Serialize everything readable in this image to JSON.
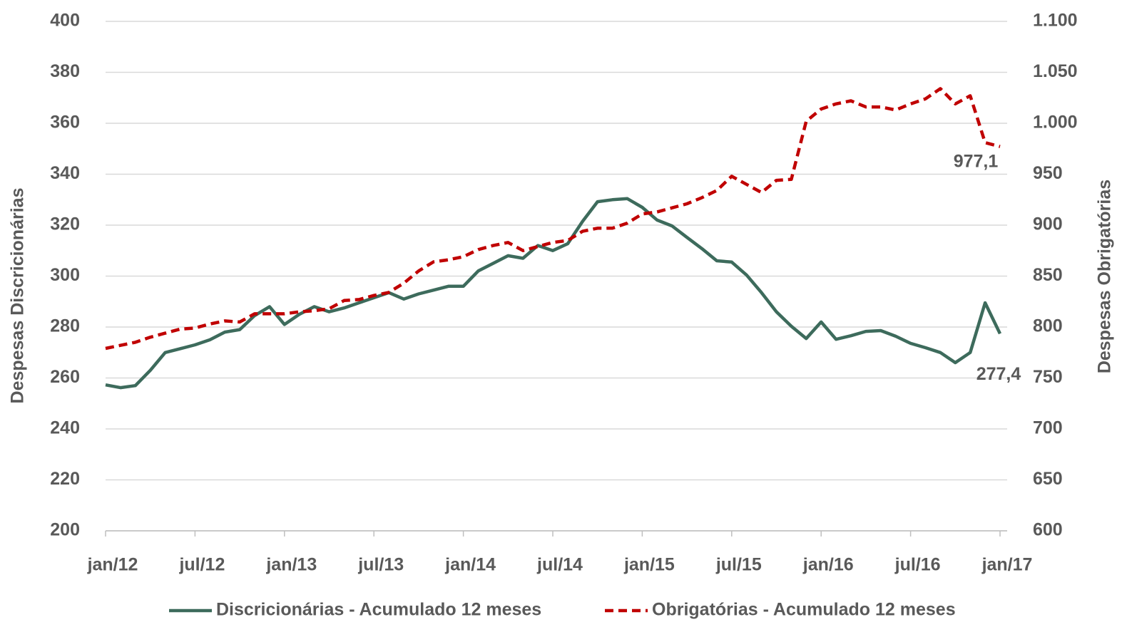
{
  "chart_data": {
    "type": "line",
    "ylabel": "Despesas Discricionárias",
    "y2label": "Despesas Obrigatórias",
    "categories": [
      "jan/12",
      null,
      null,
      null,
      null,
      null,
      "jul/12",
      null,
      null,
      null,
      null,
      null,
      "jan/13",
      null,
      null,
      null,
      null,
      null,
      "jul/13",
      null,
      null,
      null,
      null,
      null,
      "jan/14",
      null,
      null,
      null,
      null,
      null,
      "jul/14",
      null,
      null,
      null,
      null,
      null,
      "jan/15",
      null,
      null,
      null,
      null,
      null,
      "jul/15",
      null,
      null,
      null,
      null,
      null,
      "jan/16",
      null,
      null,
      null,
      null,
      null,
      "jul/16",
      null,
      null,
      null,
      null,
      null,
      "jan/17"
    ],
    "ylim": [
      200,
      400
    ],
    "yticks": [
      200,
      220,
      240,
      260,
      280,
      300,
      320,
      340,
      360,
      380,
      400
    ],
    "y2lim": [
      600,
      1100
    ],
    "y2ticks": [
      600,
      650,
      700,
      750,
      800,
      850,
      900,
      950,
      {
        "value": 1000,
        "label": "1.000"
      },
      {
        "value": 1050,
        "label": "1.050"
      },
      {
        "value": 1100,
        "label": "1.100"
      }
    ],
    "grid": true,
    "legend": "bottom",
    "series": [
      {
        "name": "Discricionárias - Acumulado 12 meses",
        "color": "#3d6b5c",
        "dash": false,
        "values": [
          257.3,
          256.2,
          257,
          263,
          270,
          271.5,
          273,
          275,
          278,
          279,
          284.5,
          288,
          281,
          285,
          288,
          286,
          287.5,
          289.5,
          291.5,
          293.5,
          291,
          293,
          294.5,
          296,
          296,
          302,
          305,
          308,
          307,
          312,
          310,
          312.7,
          321.5,
          329.2,
          330,
          330.4,
          327,
          322,
          319.7,
          315.2,
          310.8,
          306,
          305.5,
          300.4,
          293.5,
          286,
          280.3,
          275.5,
          282,
          275.2,
          276.6,
          278.3,
          278.6,
          276.4,
          273.6,
          271.9,
          270,
          266,
          270,
          289.5,
          277.4
        ],
        "value_labels": [
          null,
          null,
          null,
          null,
          null,
          null,
          null,
          null,
          null,
          null,
          null,
          null,
          null,
          null,
          null,
          null,
          null,
          null,
          null,
          null,
          null,
          null,
          null,
          null,
          null,
          null,
          null,
          null,
          null,
          null,
          null,
          null,
          null,
          null,
          null,
          null,
          null,
          null,
          null,
          null,
          null,
          null,
          null,
          null,
          null,
          null,
          null,
          null,
          null,
          null,
          null,
          null,
          null,
          null,
          null,
          null,
          null,
          null,
          null,
          null,
          "277,4"
        ]
      },
      {
        "name": "Obrigatórias - Acumulado 12 meses",
        "color": "#c00000",
        "dash": true,
        "axis": "y2",
        "values": [
          779,
          782,
          785,
          790,
          794,
          798,
          799,
          803,
          806,
          805,
          813,
          813,
          813,
          815,
          816,
          818,
          826,
          827,
          831,
          834,
          843,
          855,
          864,
          866,
          869,
          876,
          880,
          883,
          875,
          879,
          883,
          885,
          894,
          897,
          897,
          902,
          911,
          913,
          917,
          921,
          927,
          934,
          948,
          940,
          932,
          944,
          945,
          1002,
          1014,
          1019,
          1022,
          1016,
          1016,
          1013,
          1019,
          1024,
          1034,
          1019,
          1027,
          981,
          977.1
        ],
        "value_labels": [
          null,
          null,
          null,
          null,
          null,
          null,
          null,
          null,
          null,
          null,
          null,
          null,
          null,
          null,
          null,
          null,
          null,
          null,
          null,
          null,
          null,
          null,
          null,
          null,
          null,
          null,
          null,
          null,
          null,
          null,
          null,
          null,
          null,
          null,
          null,
          null,
          null,
          null,
          null,
          null,
          null,
          null,
          null,
          null,
          null,
          null,
          null,
          null,
          null,
          null,
          null,
          null,
          null,
          null,
          null,
          null,
          null,
          null,
          null,
          null,
          "977,1"
        ]
      }
    ]
  }
}
